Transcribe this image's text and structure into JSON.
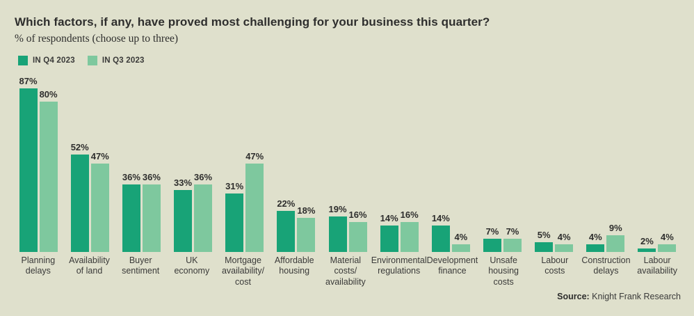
{
  "header": {
    "title": "Which factors, if any, have proved most challenging for your business this quarter?",
    "subtitle": "% of respondents (choose up to three)"
  },
  "legend": [
    {
      "label": "IN Q4 2023",
      "color": "#18a377"
    },
    {
      "label": "IN Q3 2023",
      "color": "#7ec89e"
    }
  ],
  "chart_data": {
    "type": "bar",
    "title": "Which factors, if any, have proved most challenging for your business this quarter?",
    "subtitle": "% of respondents (choose up to three)",
    "categories": [
      "Planning\ndelays",
      "Availability\nof land",
      "Buyer\nsentiment",
      "UK\neconomy",
      "Mortgage\navailability/\ncost",
      "Affordable\nhousing",
      "Material\ncosts/\navailability",
      "Environmental\nregulations",
      "Development\nfinance",
      "Unsafe\nhousing\ncosts",
      "Labour\ncosts",
      "Construction\ndelays",
      "Labour\navailability"
    ],
    "series": [
      {
        "name": "IN Q4 2023",
        "color": "#18a377",
        "values": [
          87,
          52,
          36,
          33,
          31,
          22,
          19,
          14,
          14,
          7,
          5,
          4,
          2
        ]
      },
      {
        "name": "IN Q3 2023",
        "color": "#7ec89e",
        "values": [
          80,
          47,
          36,
          36,
          47,
          18,
          16,
          16,
          4,
          7,
          4,
          9,
          4
        ]
      }
    ],
    "value_suffix": "%",
    "ylim": [
      0,
      100
    ],
    "grid": false,
    "axes_visible": false,
    "legend_position": "top-left"
  },
  "footer": {
    "source_label": "Source:",
    "source_value": " Knight Frank Research"
  },
  "colors": {
    "background": "#dfe0cc",
    "text": "#2e2e2d"
  }
}
